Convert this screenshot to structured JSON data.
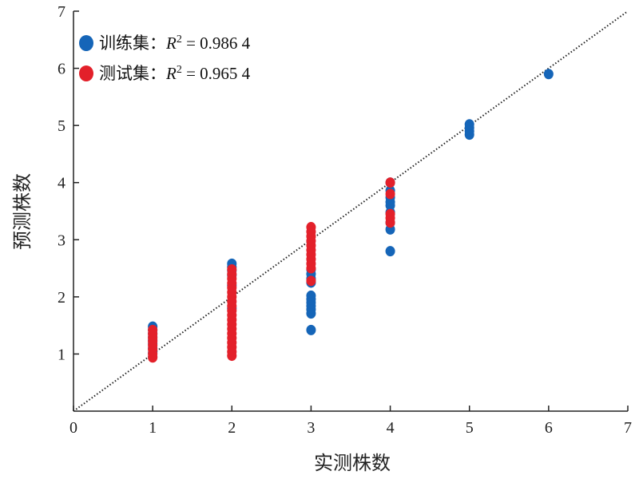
{
  "chart_data": {
    "type": "scatter",
    "xlabel": "实测株数",
    "ylabel": "预测株数",
    "xlim": [
      0,
      7
    ],
    "ylim": [
      0,
      7
    ],
    "xticks": [
      0,
      1,
      2,
      3,
      4,
      5,
      6,
      7
    ],
    "yticks": [
      1,
      2,
      3,
      4,
      5,
      6,
      7
    ],
    "legend_position": "top-left",
    "reference_line": {
      "style": "dotted",
      "from": [
        0,
        0
      ],
      "to": [
        7,
        7
      ],
      "color": "#222222"
    },
    "series": [
      {
        "name": "训练集",
        "label_prefix": "训练集：",
        "r2_symbol": "R",
        "r2_sup": "2",
        "r2_value": " = 0.986 4",
        "color": "#1565b8",
        "points": [
          [
            1,
            1.48
          ],
          [
            1,
            1.42
          ],
          [
            1,
            1.36
          ],
          [
            1,
            1.3
          ],
          [
            1,
            1.24
          ],
          [
            1,
            1.18
          ],
          [
            1,
            1.1
          ],
          [
            1,
            1.02
          ],
          [
            1,
            0.95
          ],
          [
            2,
            2.58
          ],
          [
            2,
            2.52
          ],
          [
            2,
            2.46
          ],
          [
            2,
            2.38
          ],
          [
            2,
            2.2
          ],
          [
            2,
            1.8
          ],
          [
            3,
            2.48
          ],
          [
            3,
            2.4
          ],
          [
            3,
            2.32
          ],
          [
            3,
            2.25
          ],
          [
            3,
            2.02
          ],
          [
            3,
            1.96
          ],
          [
            3,
            1.9
          ],
          [
            3,
            1.84
          ],
          [
            3,
            1.78
          ],
          [
            3,
            1.71
          ],
          [
            3,
            1.42
          ],
          [
            4,
            4.0
          ],
          [
            4,
            3.86
          ],
          [
            4,
            3.74
          ],
          [
            4,
            3.66
          ],
          [
            4,
            3.6
          ],
          [
            4,
            3.48
          ],
          [
            4,
            3.3
          ],
          [
            4,
            3.18
          ],
          [
            4,
            2.8
          ],
          [
            5,
            5.02
          ],
          [
            5,
            4.96
          ],
          [
            5,
            4.9
          ],
          [
            5,
            4.84
          ],
          [
            6,
            5.9
          ]
        ]
      },
      {
        "name": "测试集",
        "label_prefix": "测试集：",
        "r2_symbol": "R",
        "r2_sup": "2",
        "r2_value": " = 0.965 4",
        "color": "#e3202a",
        "points": [
          [
            1,
            1.42
          ],
          [
            1,
            1.35
          ],
          [
            1,
            1.28
          ],
          [
            1,
            1.22
          ],
          [
            1,
            1.15
          ],
          [
            1,
            1.08
          ],
          [
            1,
            1.0
          ],
          [
            1,
            0.94
          ],
          [
            2,
            2.48
          ],
          [
            2,
            2.4
          ],
          [
            2,
            2.32
          ],
          [
            2,
            2.24
          ],
          [
            2,
            2.16
          ],
          [
            2,
            2.08
          ],
          [
            2,
            2.0
          ],
          [
            2,
            1.92
          ],
          [
            2,
            1.84
          ],
          [
            2,
            1.76
          ],
          [
            2,
            1.68
          ],
          [
            2,
            1.6
          ],
          [
            2,
            1.52
          ],
          [
            2,
            1.44
          ],
          [
            2,
            1.36
          ],
          [
            2,
            1.28
          ],
          [
            2,
            1.2
          ],
          [
            2,
            1.12
          ],
          [
            2,
            1.04
          ],
          [
            2,
            0.97
          ],
          [
            3,
            3.22
          ],
          [
            3,
            3.14
          ],
          [
            3,
            3.06
          ],
          [
            3,
            2.98
          ],
          [
            3,
            2.9
          ],
          [
            3,
            2.82
          ],
          [
            3,
            2.74
          ],
          [
            3,
            2.66
          ],
          [
            3,
            2.58
          ],
          [
            3,
            2.5
          ],
          [
            3,
            2.28
          ],
          [
            4,
            4.0
          ],
          [
            4,
            3.8
          ],
          [
            4,
            3.45
          ],
          [
            4,
            3.38
          ],
          [
            4,
            3.3
          ]
        ]
      }
    ]
  }
}
